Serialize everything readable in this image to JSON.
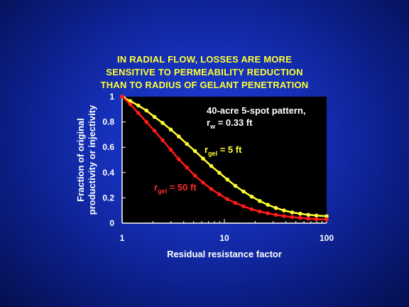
{
  "chart_data": {
    "type": "line",
    "title_lines": [
      "IN RADIAL FLOW, LOSSES ARE MORE",
      "SENSITIVE TO PERMEABILITY REDUCTION",
      "THAN TO RADIUS OF GELANT PENETRATION"
    ],
    "xlabel": "Residual resistance factor",
    "ylabel_lines": [
      "Fraction of original",
      "productivity or injectivity"
    ],
    "x_scale": "log",
    "xlim": [
      1,
      100
    ],
    "ylim": [
      0,
      1
    ],
    "x_ticks": [
      1,
      10,
      100
    ],
    "x_tick_labels": [
      "1",
      "10",
      "100"
    ],
    "y_ticks": [
      0,
      0.2,
      0.4,
      0.6,
      0.8,
      1
    ],
    "y_tick_labels": [
      "0",
      "0.2",
      "0.4",
      "0.6",
      "0.8",
      "1"
    ],
    "grid": false,
    "annotation": {
      "line1": "40-acre 5-spot pattern,",
      "line2_prefix": "r",
      "line2_sub": "w",
      "line2_suffix": " = 0.33 ft"
    },
    "series": [
      {
        "label_prefix": "r",
        "label_sub": "gel",
        "label_suffix": " = 5 ft",
        "color": "#ffff33",
        "x": [
          1,
          1.2,
          1.44,
          1.73,
          2.07,
          2.49,
          2.99,
          3.58,
          4.3,
          5.16,
          6.19,
          7.43,
          8.92,
          10.7,
          12.8,
          15.4,
          18.5,
          22.2,
          26.6,
          31.9,
          38.3,
          46,
          55.2,
          66.2,
          79.5,
          100
        ],
        "y": [
          1,
          0.965,
          0.93,
          0.89,
          0.84,
          0.792,
          0.74,
          0.685,
          0.626,
          0.57,
          0.51,
          0.452,
          0.398,
          0.345,
          0.295,
          0.25,
          0.21,
          0.175,
          0.145,
          0.12,
          0.1,
          0.085,
          0.075,
          0.066,
          0.06,
          0.055
        ]
      },
      {
        "label_prefix": "r",
        "label_sub": "gel",
        "label_suffix": " = 50 ft",
        "color": "#ff1a1a",
        "x": [
          1,
          1.2,
          1.44,
          1.73,
          2.07,
          2.49,
          2.99,
          3.58,
          4.3,
          5.16,
          6.19,
          7.43,
          8.92,
          10.7,
          12.8,
          15.4,
          18.5,
          22.2,
          26.6,
          31.9,
          38.3,
          46,
          55.2,
          66.2,
          79.5,
          100
        ],
        "y": [
          1,
          0.94,
          0.87,
          0.8,
          0.73,
          0.655,
          0.58,
          0.505,
          0.44,
          0.375,
          0.32,
          0.27,
          0.228,
          0.19,
          0.16,
          0.133,
          0.11,
          0.092,
          0.078,
          0.066,
          0.056,
          0.048,
          0.042,
          0.036,
          0.032,
          0.03
        ]
      }
    ]
  }
}
